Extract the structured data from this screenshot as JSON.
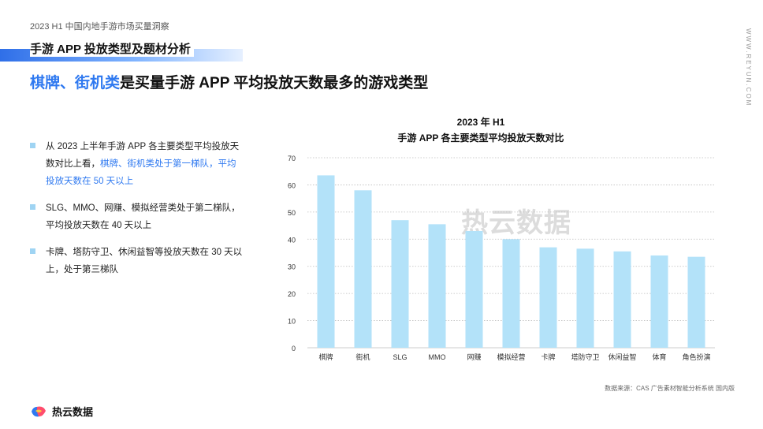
{
  "report": {
    "tag": "2023 H1 中国内地手游市场买量洞察"
  },
  "section": {
    "title": "手游 APP 投放类型及题材分析"
  },
  "headline": {
    "highlight": "棋牌、街机类",
    "rest": "是买量手游 APP 平均投放天数最多的游戏类型"
  },
  "side_url": "WWW.REYUN.COM",
  "bullets": [
    {
      "text": "从 2023 上半年手游 APP 各主要类型平均投放天数对比上看，",
      "highlight": "棋牌、街机类处于第一梯队，平均投放天数在 50 天以上"
    },
    {
      "text": "SLG、MMO、网赚、模拟经营类处于第二梯队，平均投放天数在 40 天以上",
      "highlight": ""
    },
    {
      "text": "卡牌、塔防守卫、休闲益智等投放天数在 30 天以上，处于第三梯队",
      "highlight": ""
    }
  ],
  "watermark": "热云数据",
  "source": "数据来源：CAS 广告素材智能分析系统 国内版",
  "logo": {
    "text": "热云数据",
    "icon": "reyun-logo-icon"
  },
  "colors": {
    "bar": "#b3e2f9",
    "accent": "#2f79f0",
    "grid": "#bdbdbd"
  },
  "chart_data": {
    "type": "bar",
    "title": "2023 年 H1",
    "subtitle": "手游 APP 各主要类型平均投放天数对比",
    "categories": [
      "棋牌",
      "街机",
      "SLG",
      "MMO",
      "网赚",
      "模拟经营",
      "卡牌",
      "塔防守卫",
      "休闲益智",
      "体育",
      "角色扮演"
    ],
    "values": [
      63.5,
      58,
      47,
      45.5,
      43,
      40,
      37,
      36.5,
      35.5,
      34,
      33.5
    ],
    "ylim": [
      0,
      70
    ],
    "yticks": [
      0,
      10,
      20,
      30,
      40,
      50,
      60,
      70
    ],
    "grid": "dotted horizontal",
    "legend": "none"
  }
}
